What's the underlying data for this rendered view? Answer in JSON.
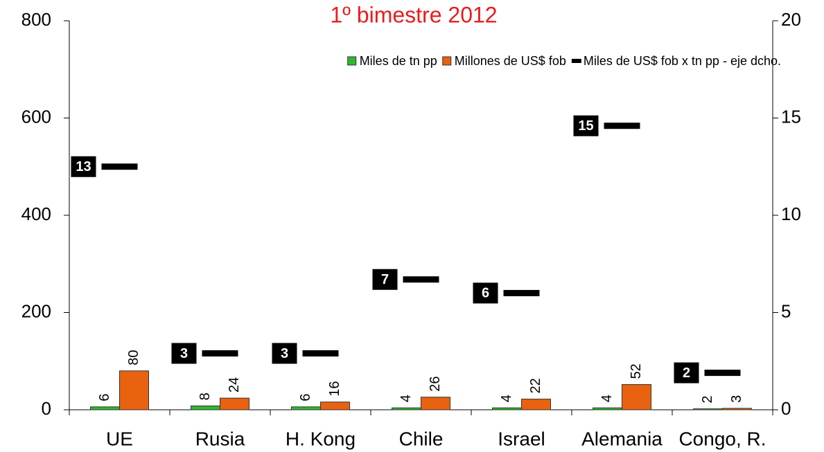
{
  "chart_data": {
    "type": "bar",
    "subtitle": "1º bimestre 2012",
    "categories": [
      "UE",
      "Rusia",
      "H. Kong",
      "Chile",
      "Israel",
      "Alemania",
      "Congo, R."
    ],
    "series": [
      {
        "name": "Miles de tn pp",
        "color": "#2db82d",
        "values": [
          6,
          8,
          6,
          4,
          4,
          4,
          2
        ]
      },
      {
        "name": "Millones de US$ fob",
        "color": "#e8620f",
        "values": [
          80,
          24,
          16,
          26,
          22,
          52,
          3
        ]
      },
      {
        "name": "Miles de US$ fob x tn pp - eje dcho.",
        "color": "#000000",
        "axis": "y2",
        "values": [
          12.5,
          2.9,
          2.9,
          6.7,
          6,
          14.6,
          1.9
        ],
        "value_labels": [
          "13",
          "3",
          "3",
          "7",
          "6",
          "15",
          "2"
        ]
      }
    ],
    "ylim": [
      0,
      800
    ],
    "yticks": [
      0,
      200,
      400,
      600,
      800
    ],
    "y2lim": [
      0,
      20
    ],
    "y2ticks": [
      0,
      5,
      10,
      15,
      20
    ],
    "legend": "top-right"
  }
}
